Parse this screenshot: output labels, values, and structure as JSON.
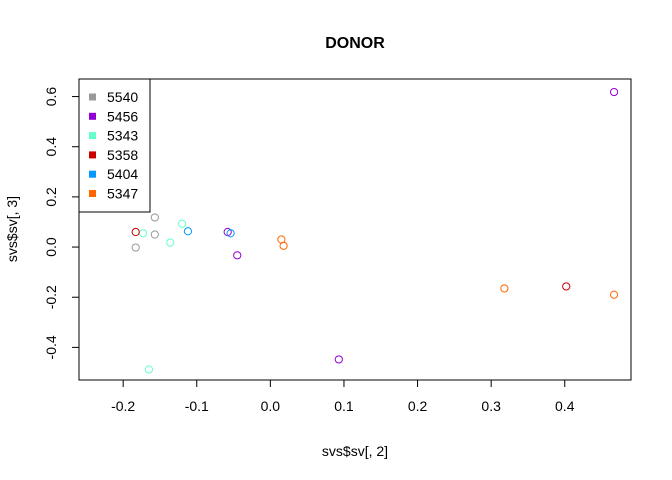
{
  "chart_data": {
    "type": "scatter",
    "title": "DONOR",
    "xlabel": "svs$sv[, 2]",
    "ylabel": "svs$sv[, 3]",
    "xlim": [
      -0.26,
      0.49
    ],
    "ylim": [
      -0.53,
      0.67
    ],
    "xticks": [
      -0.2,
      -0.1,
      0.0,
      0.1,
      0.2,
      0.3,
      0.4
    ],
    "xtick_labels": [
      "-0.2",
      "-0.1",
      "0.0",
      "0.1",
      "0.2",
      "0.3",
      "0.4"
    ],
    "yticks": [
      -0.4,
      -0.2,
      0.0,
      0.2,
      0.4,
      0.6
    ],
    "ytick_labels": [
      "-0.4",
      "-0.2",
      "0.0",
      "0.2",
      "0.4",
      "0.6"
    ],
    "grid": false,
    "legend_position": "top-left",
    "series": [
      {
        "name": "5540",
        "color": "#999999",
        "points": [
          [
            -0.157,
            0.118
          ],
          [
            -0.157,
            0.05
          ],
          [
            -0.183,
            -0.002
          ]
        ]
      },
      {
        "name": "5456",
        "color": "#9400D3",
        "points": [
          [
            0.467,
            0.618
          ],
          [
            -0.058,
            0.06
          ],
          [
            -0.045,
            -0.033
          ],
          [
            0.093,
            -0.448
          ]
        ]
      },
      {
        "name": "5343",
        "color": "#66FFCC",
        "points": [
          [
            -0.12,
            0.093
          ],
          [
            -0.173,
            0.055
          ],
          [
            -0.136,
            0.018
          ],
          [
            -0.165,
            -0.488
          ]
        ]
      },
      {
        "name": "5358",
        "color": "#CC0000",
        "points": [
          [
            -0.183,
            0.06
          ],
          [
            0.402,
            -0.157
          ]
        ]
      },
      {
        "name": "5404",
        "color": "#0099FF",
        "points": [
          [
            -0.112,
            0.063
          ],
          [
            -0.054,
            0.055
          ]
        ]
      },
      {
        "name": "5347",
        "color": "#FF6600",
        "points": [
          [
            0.015,
            0.03
          ],
          [
            0.018,
            0.005
          ],
          [
            0.318,
            -0.165
          ],
          [
            0.467,
            -0.19
          ]
        ]
      }
    ]
  }
}
